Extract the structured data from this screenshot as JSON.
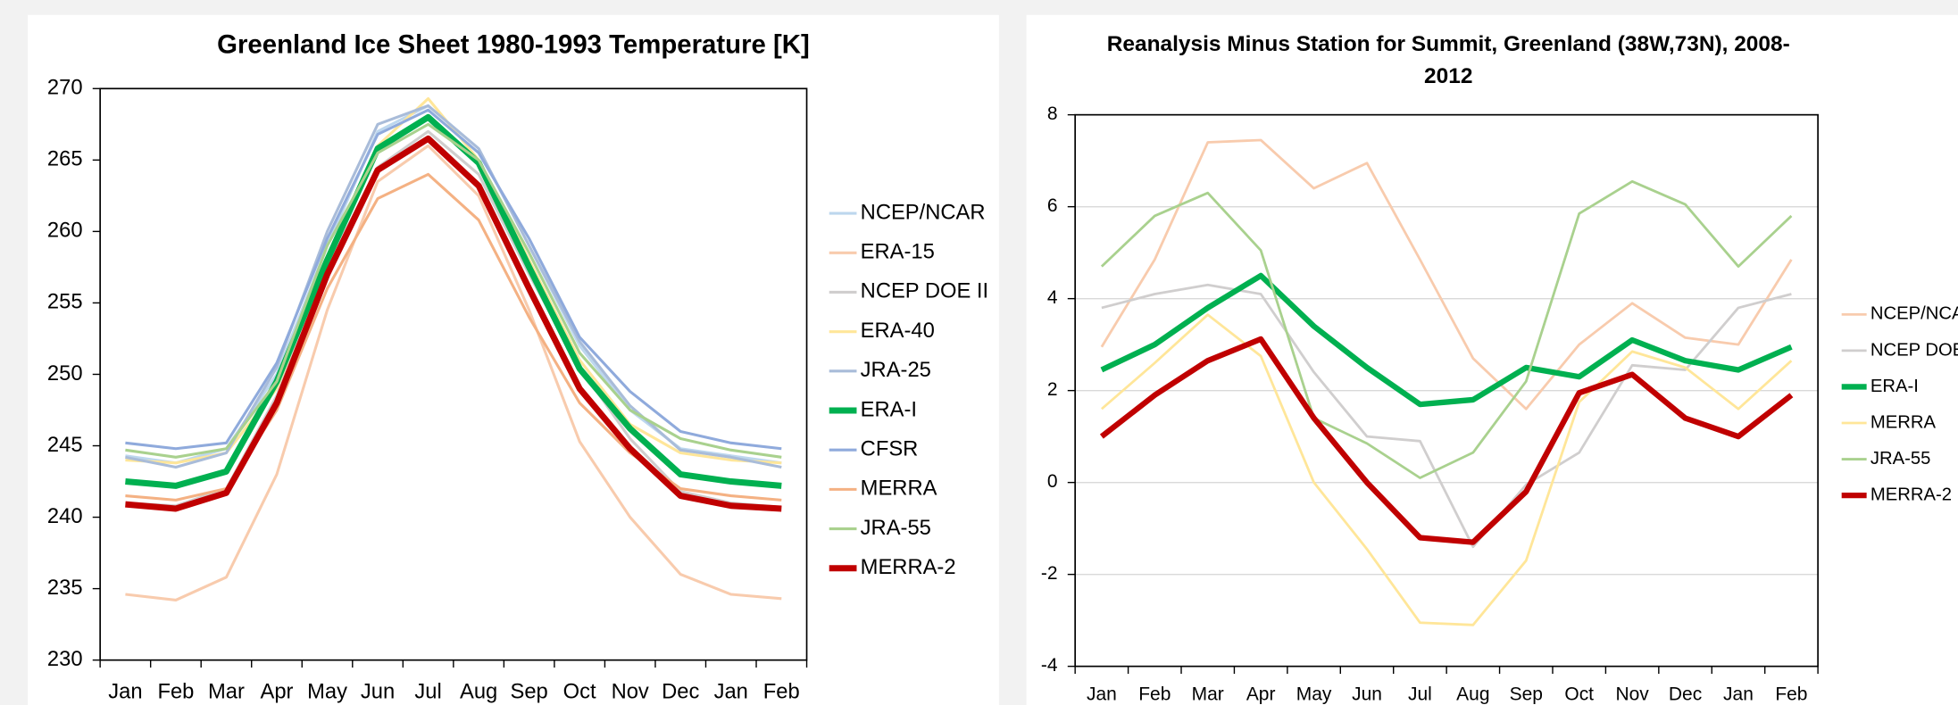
{
  "chart_data": [
    {
      "type": "line",
      "title": [
        "Greenland Ice Sheet 1980-1993 Temperature [K]"
      ],
      "categories": [
        "Jan",
        "Feb",
        "Mar",
        "Apr",
        "May",
        "Jun",
        "Jul",
        "Aug",
        "Sep",
        "Oct",
        "Nov",
        "Dec",
        "Jan",
        "Feb"
      ],
      "ylim": [
        230,
        270
      ],
      "yticks": [
        230,
        235,
        240,
        245,
        250,
        255,
        260,
        265,
        270
      ],
      "grid": false,
      "series": [
        {
          "name": "NCEP/NCAR",
          "color": "#bdd7ee",
          "values": [
            244.3,
            243.8,
            244.8,
            250,
            259,
            267,
            268.8,
            265.8,
            259,
            252,
            247.5,
            244.8,
            244.3,
            243.8
          ]
        },
        {
          "name": "ERA-15",
          "color": "#f8cbad",
          "values": [
            234.6,
            234.2,
            235.8,
            243,
            254.5,
            263.5,
            266,
            262.5,
            254.5,
            245.3,
            240,
            236,
            234.6,
            234.3
          ]
        },
        {
          "name": "NCEP DOE II",
          "color": "#d0cece",
          "values": [
            241,
            240.8,
            242,
            248.5,
            257.5,
            264.5,
            267,
            264,
            257,
            250.5,
            245.5,
            241.8,
            241,
            240.7
          ]
        },
        {
          "name": "ERA-40",
          "color": "#ffe699",
          "values": [
            244,
            243.8,
            244.5,
            249,
            258,
            266,
            269.3,
            265,
            258,
            251,
            246.5,
            244.5,
            244,
            243.8
          ]
        },
        {
          "name": "JRA-25",
          "color": "#a9bcd9",
          "values": [
            244.2,
            243.5,
            244.5,
            250.5,
            260,
            267.5,
            268.8,
            265.8,
            259,
            252.3,
            247.8,
            244.7,
            244.2,
            243.5
          ]
        },
        {
          "name": "ERA-I",
          "color": "#00b050",
          "values": [
            242.5,
            242.2,
            243.2,
            249.5,
            258,
            265.8,
            268,
            264.8,
            257.5,
            250.4,
            246.2,
            243,
            242.5,
            242.2
          ]
        },
        {
          "name": "CFSR",
          "color": "#8faadc",
          "values": [
            245.2,
            244.8,
            245.2,
            250.8,
            259.5,
            266.8,
            268.5,
            265.5,
            259.5,
            252.6,
            248.8,
            246,
            245.2,
            244.8
          ]
        },
        {
          "name": "MERRA",
          "color": "#f4b183",
          "values": [
            241.5,
            241.2,
            242,
            247.5,
            256,
            262.3,
            264,
            260.8,
            254,
            248,
            244.5,
            242,
            241.5,
            241.2
          ]
        },
        {
          "name": "JRA-55",
          "color": "#a9d18e",
          "values": [
            244.7,
            244.2,
            244.8,
            249.5,
            259,
            265.5,
            267.5,
            265,
            258.5,
            251.5,
            247.5,
            245.5,
            244.7,
            244.2
          ]
        },
        {
          "name": "MERRA-2",
          "color": "#c00000",
          "values": [
            240.9,
            240.6,
            241.7,
            248,
            257,
            264.3,
            266.5,
            263.2,
            256,
            249,
            244.8,
            241.5,
            240.8,
            240.6
          ]
        }
      ]
    },
    {
      "type": "line",
      "title": [
        "Reanalysis Minus Station for Summit, Greenland (38W,73N), 2008-",
        "2012"
      ],
      "categories": [
        "Jan",
        "Feb",
        "Mar",
        "Apr",
        "May",
        "Jun",
        "Jul",
        "Aug",
        "Sep",
        "Oct",
        "Nov",
        "Dec",
        "Jan",
        "Feb"
      ],
      "ylim": [
        -4,
        8
      ],
      "yticks": [
        -4,
        -2,
        0,
        2,
        4,
        6,
        8
      ],
      "grid": true,
      "series": [
        {
          "name": "NCEP/NCAR",
          "color": "#f8cbad",
          "values": [
            2.95,
            4.85,
            7.4,
            7.45,
            6.4,
            6.95,
            4.85,
            2.7,
            1.6,
            3.0,
            3.9,
            3.15,
            3.0,
            4.85
          ]
        },
        {
          "name": "NCEP DOE II",
          "color": "#d0cece",
          "values": [
            3.8,
            4.1,
            4.3,
            4.1,
            2.4,
            1.0,
            0.9,
            -1.4,
            -0.05,
            0.65,
            2.55,
            2.45,
            3.8,
            4.1
          ]
        },
        {
          "name": "ERA-I",
          "color": "#00b050",
          "values": [
            2.45,
            3.0,
            3.8,
            4.5,
            3.4,
            2.5,
            1.7,
            1.8,
            2.5,
            2.3,
            3.1,
            2.65,
            2.45,
            2.95
          ]
        },
        {
          "name": "MERRA",
          "color": "#ffe699",
          "values": [
            1.6,
            2.6,
            3.65,
            2.75,
            0.0,
            -1.45,
            -3.05,
            -3.1,
            -1.7,
            1.75,
            2.85,
            2.5,
            1.6,
            2.65
          ]
        },
        {
          "name": "JRA-55",
          "color": "#a9d18e",
          "values": [
            4.7,
            5.8,
            6.3,
            5.05,
            1.4,
            0.85,
            0.1,
            0.65,
            2.2,
            5.85,
            6.55,
            6.05,
            4.7,
            5.8
          ]
        },
        {
          "name": "MERRA-2",
          "color": "#c00000",
          "values": [
            1.0,
            1.9,
            2.65,
            3.12,
            1.4,
            0.0,
            -1.2,
            -1.3,
            -0.2,
            1.95,
            2.35,
            1.4,
            1.0,
            1.9
          ]
        }
      ]
    }
  ]
}
